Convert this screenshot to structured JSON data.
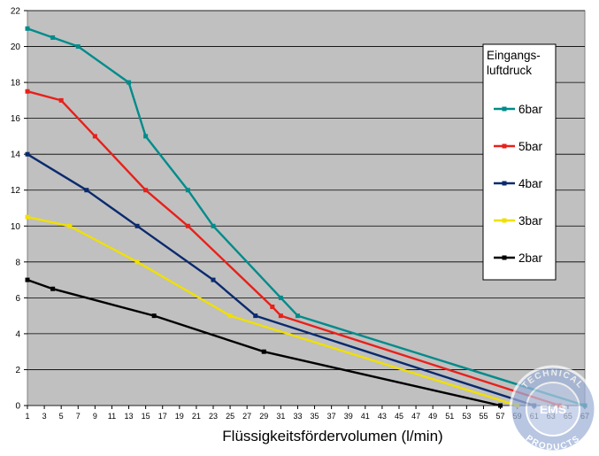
{
  "chart_data": {
    "type": "line",
    "title": "",
    "xlabel": "Flüssigkeitsfördervolumen (l/min)",
    "ylabel": "",
    "x_ticks": [
      "1",
      "3",
      "5",
      "7",
      "9",
      "11",
      "13",
      "15",
      "17",
      "19",
      "21",
      "23",
      "25",
      "27",
      "29",
      "31",
      "33",
      "35",
      "37",
      "39",
      "41",
      "43",
      "45",
      "47",
      "49",
      "51",
      "53",
      "55",
      "57",
      "59",
      "61",
      "63",
      "65",
      "67"
    ],
    "y_ticks": [
      "0",
      "2",
      "4",
      "6",
      "8",
      "10",
      "12",
      "14",
      "16",
      "18",
      "20",
      "22"
    ],
    "xlim": [
      1,
      67
    ],
    "ylim": [
      0,
      22
    ],
    "grid": "horizontal",
    "legend_title": "Eingangs-\nluftdruck",
    "legend_position": "right",
    "series": [
      {
        "name": "6bar",
        "color": "#008b8b",
        "points": [
          [
            1,
            21
          ],
          [
            4,
            20.5
          ],
          [
            7,
            20
          ],
          [
            13,
            18
          ],
          [
            15,
            15
          ],
          [
            20,
            12
          ],
          [
            23,
            10
          ],
          [
            31,
            6
          ],
          [
            33,
            5
          ],
          [
            67,
            0
          ]
        ]
      },
      {
        "name": "5bar",
        "color": "#e8201a",
        "points": [
          [
            1,
            17.5
          ],
          [
            5,
            17
          ],
          [
            9,
            15
          ],
          [
            15,
            12
          ],
          [
            20,
            10
          ],
          [
            30,
            5.5
          ],
          [
            31,
            5
          ],
          [
            64,
            0
          ]
        ]
      },
      {
        "name": "4bar",
        "color": "#0a2a6e",
        "points": [
          [
            1,
            14
          ],
          [
            8,
            12
          ],
          [
            14,
            10
          ],
          [
            23,
            7
          ],
          [
            28,
            5
          ],
          [
            61,
            0
          ]
        ]
      },
      {
        "name": "3bar",
        "color": "#f0e000",
        "points": [
          [
            1,
            10.5
          ],
          [
            6,
            10
          ],
          [
            14,
            8
          ],
          [
            25,
            5
          ],
          [
            59,
            0
          ]
        ]
      },
      {
        "name": "2bar",
        "color": "#000000",
        "points": [
          [
            1,
            7
          ],
          [
            4,
            6.5
          ],
          [
            16,
            5
          ],
          [
            29,
            3
          ],
          [
            57,
            0
          ]
        ]
      }
    ]
  },
  "watermark": {
    "top_text": "TECHNICAL",
    "bottom_text": "PRODUCTS",
    "center_text": "EMS"
  }
}
